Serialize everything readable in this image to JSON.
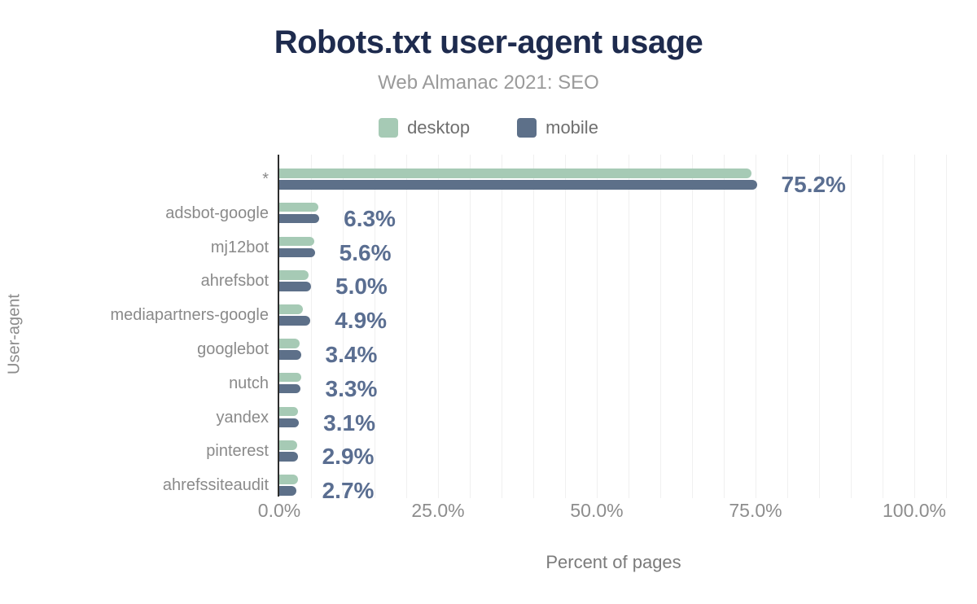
{
  "title": "Robots.txt user-agent usage",
  "subtitle": "Web Almanac 2021: SEO",
  "legend": [
    {
      "label": "desktop",
      "color": "#a6cab5"
    },
    {
      "label": "mobile",
      "color": "#5d7089"
    }
  ],
  "colors": {
    "title": "#1e2b4e",
    "subtitle_gray": "#9a9a9a",
    "value_label": "#5a6e91",
    "axis_line": "#2d2d2d",
    "gridline": "#f0f0f0"
  },
  "chart_data": {
    "type": "bar",
    "orientation": "horizontal",
    "title": "Robots.txt user-agent usage",
    "subtitle": "Web Almanac 2021: SEO",
    "xlabel": "Percent of pages",
    "ylabel": "User-agent",
    "categories": [
      "*",
      "adsbot-google",
      "mj12bot",
      "ahrefsbot",
      "mediapartners-google",
      "googlebot",
      "nutch",
      "yandex",
      "pinterest",
      "ahrefssiteaudit"
    ],
    "series": [
      {
        "name": "desktop",
        "color": "#a6cab5",
        "values": [
          74.4,
          6.2,
          5.5,
          4.6,
          3.7,
          3.2,
          3.4,
          3.0,
          2.8,
          2.9
        ]
      },
      {
        "name": "mobile",
        "color": "#5d7089",
        "values": [
          75.2,
          6.3,
          5.6,
          5.0,
          4.9,
          3.4,
          3.3,
          3.1,
          2.9,
          2.7
        ]
      }
    ],
    "data_labels": [
      "75.2%",
      "6.3%",
      "5.6%",
      "5.0%",
      "4.9%",
      "3.4%",
      "3.3%",
      "3.1%",
      "2.9%",
      "2.7%"
    ],
    "x_ticks": [
      {
        "label": "0.0%",
        "value": 0
      },
      {
        "label": "25.0%",
        "value": 25
      },
      {
        "label": "50.0%",
        "value": 50
      },
      {
        "label": "75.0%",
        "value": 75
      },
      {
        "label": "100.0%",
        "value": 100
      }
    ],
    "xlim": [
      0,
      105.3
    ],
    "grid": "vertical, minor every 5%",
    "legend_position": "top"
  }
}
